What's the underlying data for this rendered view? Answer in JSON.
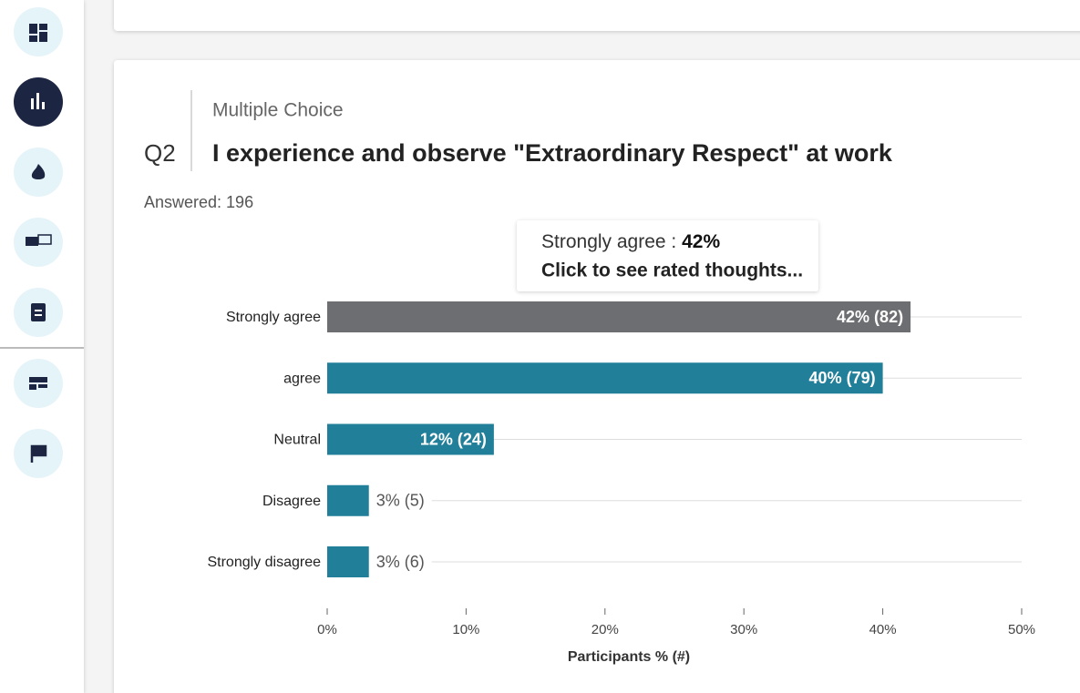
{
  "question": {
    "kind": "Multiple Choice",
    "number": "Q2",
    "title": "I experience and observe \"Extraordinary Respect\" at work",
    "answered": "Answered: 196"
  },
  "tooltip": {
    "category": "Strongly agree :",
    "value": "42%",
    "action": "Click to see rated thoughts..."
  },
  "chart_data": {
    "type": "bar",
    "orientation": "horizontal",
    "categories": [
      "Strongly agree",
      "agree",
      "Neutral",
      "Disagree",
      "Strongly disagree"
    ],
    "values": [
      42,
      40,
      12,
      3,
      3
    ],
    "value_labels": [
      "42% (82)",
      "40% (79)",
      "12% (24)",
      "3% (5)",
      "3% (6)"
    ],
    "colors": [
      "#6d6e71",
      "#217f99",
      "#217f99",
      "#217f99",
      "#217f99"
    ],
    "xlim": [
      0,
      50
    ],
    "xticks": [
      {
        "value": 0,
        "label": "0%"
      },
      {
        "value": 10,
        "label": "10%"
      },
      {
        "value": 20,
        "label": "20%"
      },
      {
        "value": 30,
        "label": "30%"
      },
      {
        "value": 40,
        "label": "40%"
      },
      {
        "value": 50,
        "label": "50%"
      }
    ],
    "xlabel": "Participants % (#)",
    "grid": true
  }
}
